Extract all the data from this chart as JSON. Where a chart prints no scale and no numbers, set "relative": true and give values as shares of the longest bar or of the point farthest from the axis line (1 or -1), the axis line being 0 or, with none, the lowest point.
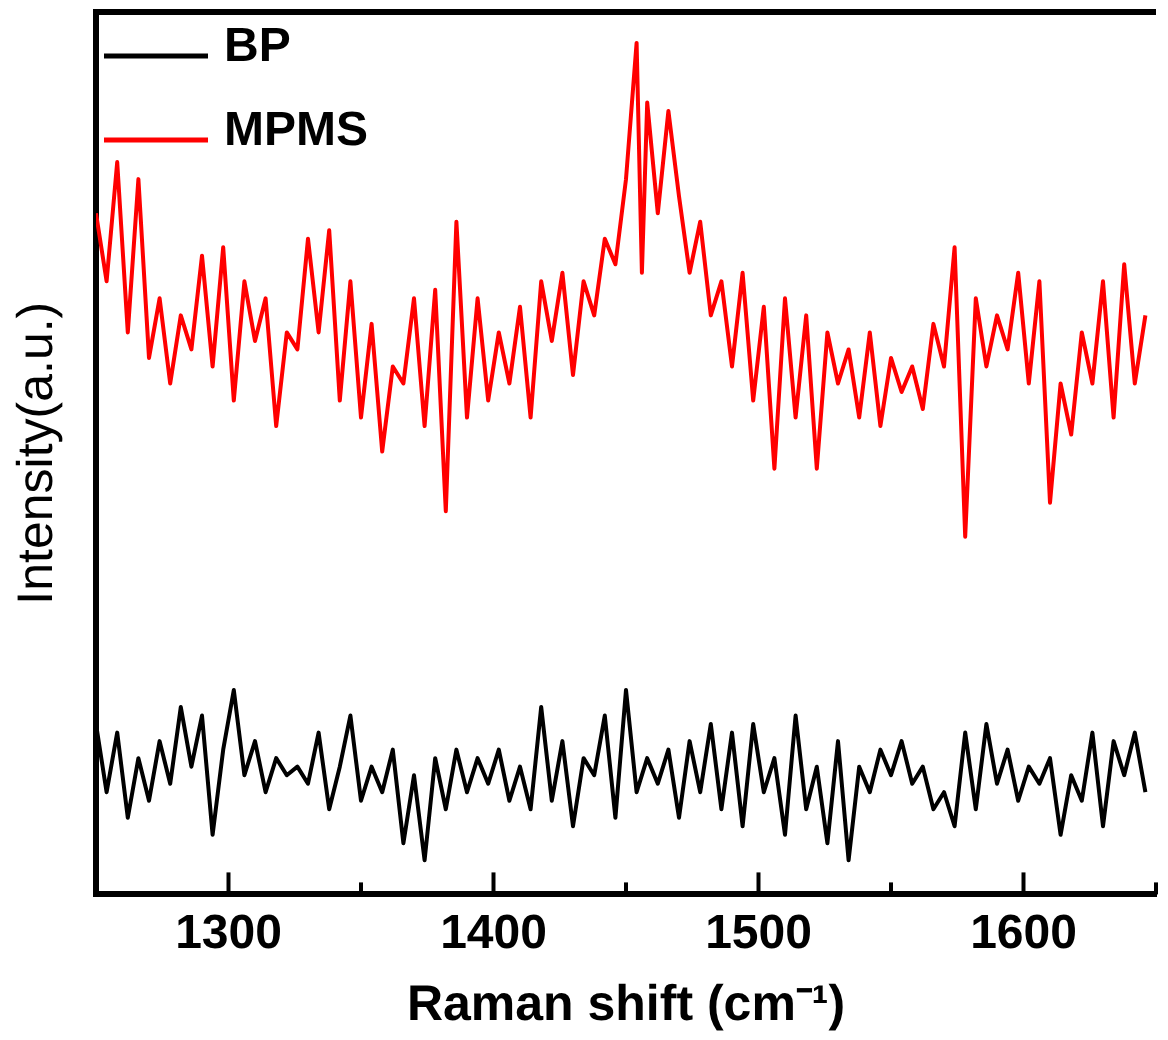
{
  "chart_data": {
    "type": "line",
    "xlabel": "Raman shift (cm⁻¹)",
    "ylabel": "Intensity(a.u.)",
    "relative": true,
    "xlim": [
      1250,
      1650
    ],
    "xticks": [
      {
        "value": 1250,
        "label": null
      },
      1300,
      {
        "value": 1350,
        "label": null
      },
      1400,
      {
        "value": 1450,
        "label": null
      },
      1500,
      {
        "value": 1550,
        "label": null
      },
      1600,
      {
        "value": 1650,
        "label": null
      }
    ],
    "legend": "top left",
    "grid": false,
    "marker": "none",
    "line_style": "solid",
    "series": [
      {
        "name": "BP",
        "color": "#000000",
        "x": [
          1250,
          1254,
          1258,
          1262,
          1266,
          1270,
          1274,
          1278,
          1282,
          1286,
          1290,
          1294,
          1298,
          1302,
          1306,
          1310,
          1314,
          1318,
          1322,
          1326,
          1330,
          1334,
          1338,
          1342,
          1346,
          1350,
          1354,
          1358,
          1362,
          1366,
          1370,
          1374,
          1378,
          1382,
          1386,
          1390,
          1394,
          1398,
          1402,
          1406,
          1410,
          1414,
          1418,
          1422,
          1426,
          1430,
          1434,
          1438,
          1442,
          1446,
          1450,
          1454,
          1458,
          1462,
          1466,
          1470,
          1474,
          1478,
          1482,
          1486,
          1490,
          1494,
          1498,
          1502,
          1506,
          1510,
          1514,
          1518,
          1522,
          1526,
          1530,
          1534,
          1538,
          1542,
          1546,
          1550,
          1554,
          1558,
          1562,
          1566,
          1570,
          1574,
          1578,
          1582,
          1586,
          1590,
          1594,
          1598,
          1602,
          1606,
          1610,
          1614,
          1618,
          1622,
          1626,
          1630,
          1634,
          1638,
          1642,
          1646
        ],
        "values": [
          0.2,
          0.12,
          0.19,
          0.09,
          0.16,
          0.11,
          0.18,
          0.13,
          0.22,
          0.15,
          0.21,
          0.07,
          0.17,
          0.24,
          0.14,
          0.18,
          0.12,
          0.16,
          0.14,
          0.15,
          0.13,
          0.19,
          0.1,
          0.15,
          0.21,
          0.11,
          0.15,
          0.12,
          0.17,
          0.06,
          0.14,
          0.04,
          0.16,
          0.1,
          0.17,
          0.12,
          0.16,
          0.13,
          0.17,
          0.11,
          0.15,
          0.1,
          0.22,
          0.11,
          0.18,
          0.08,
          0.16,
          0.14,
          0.21,
          0.09,
          0.24,
          0.12,
          0.16,
          0.13,
          0.17,
          0.09,
          0.18,
          0.12,
          0.2,
          0.1,
          0.19,
          0.08,
          0.2,
          0.12,
          0.16,
          0.07,
          0.21,
          0.1,
          0.15,
          0.06,
          0.18,
          0.04,
          0.15,
          0.12,
          0.17,
          0.14,
          0.18,
          0.13,
          0.15,
          0.1,
          0.12,
          0.08,
          0.19,
          0.1,
          0.2,
          0.13,
          0.17,
          0.11,
          0.15,
          0.13,
          0.16,
          0.07,
          0.14,
          0.11,
          0.19,
          0.08,
          0.18,
          0.14,
          0.19,
          0.12
        ]
      },
      {
        "name": "MPMS",
        "color": "#ff0000",
        "x": [
          1250,
          1254,
          1258,
          1262,
          1266,
          1270,
          1274,
          1278,
          1282,
          1286,
          1290,
          1294,
          1298,
          1302,
          1306,
          1310,
          1314,
          1318,
          1322,
          1326,
          1330,
          1334,
          1338,
          1342,
          1346,
          1350,
          1354,
          1358,
          1362,
          1366,
          1370,
          1374,
          1378,
          1382,
          1386,
          1390,
          1394,
          1398,
          1402,
          1406,
          1410,
          1414,
          1418,
          1422,
          1426,
          1430,
          1434,
          1438,
          1442,
          1446,
          1450,
          1454,
          1456,
          1458,
          1462,
          1466,
          1470,
          1474,
          1478,
          1482,
          1486,
          1490,
          1494,
          1498,
          1502,
          1506,
          1510,
          1514,
          1518,
          1522,
          1526,
          1530,
          1534,
          1538,
          1542,
          1546,
          1550,
          1554,
          1558,
          1562,
          1566,
          1570,
          1574,
          1578,
          1582,
          1586,
          1590,
          1594,
          1598,
          1602,
          1606,
          1610,
          1614,
          1618,
          1622,
          1626,
          1630,
          1634,
          1638,
          1642,
          1646
        ],
        "values": [
          0.8,
          0.72,
          0.86,
          0.66,
          0.84,
          0.63,
          0.7,
          0.6,
          0.68,
          0.64,
          0.75,
          0.62,
          0.76,
          0.58,
          0.72,
          0.65,
          0.7,
          0.55,
          0.66,
          0.64,
          0.77,
          0.66,
          0.78,
          0.58,
          0.72,
          0.56,
          0.67,
          0.52,
          0.62,
          0.6,
          0.7,
          0.55,
          0.71,
          0.45,
          0.79,
          0.56,
          0.7,
          0.58,
          0.66,
          0.6,
          0.69,
          0.56,
          0.72,
          0.65,
          0.73,
          0.61,
          0.72,
          0.68,
          0.77,
          0.74,
          0.84,
          1.0,
          0.73,
          0.93,
          0.8,
          0.92,
          0.82,
          0.73,
          0.79,
          0.68,
          0.72,
          0.62,
          0.73,
          0.58,
          0.69,
          0.5,
          0.7,
          0.56,
          0.68,
          0.5,
          0.66,
          0.6,
          0.64,
          0.56,
          0.66,
          0.55,
          0.63,
          0.59,
          0.62,
          0.57,
          0.67,
          0.62,
          0.76,
          0.42,
          0.7,
          0.62,
          0.68,
          0.64,
          0.73,
          0.6,
          0.72,
          0.46,
          0.6,
          0.54,
          0.66,
          0.6,
          0.72,
          0.56,
          0.74,
          0.6,
          0.68
        ]
      }
    ]
  }
}
